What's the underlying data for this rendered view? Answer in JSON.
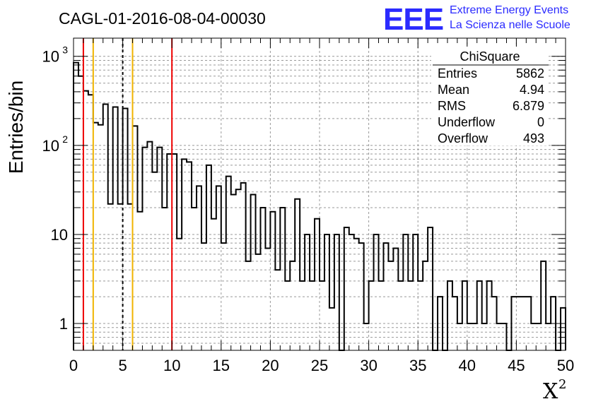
{
  "chart_data": {
    "type": "histogram",
    "title": "CAGL-01-2016-08-04-00030",
    "xlabel": "X",
    "xlabel_superscript": "2",
    "ylabel": "Entries/bin",
    "xlim": [
      0,
      50
    ],
    "ylim": [
      0.5,
      1600
    ],
    "y_scale": "log",
    "grid": true,
    "bin_width": 0.5,
    "x_ticks": [
      "0",
      "5",
      "10",
      "15",
      "20",
      "25",
      "30",
      "35",
      "40",
      "45",
      "50"
    ],
    "y_ticks": [
      {
        "value": 1,
        "label": "1"
      },
      {
        "value": 10,
        "label": "10"
      },
      {
        "value": 100,
        "base": "10",
        "exp": "2"
      },
      {
        "value": 1000,
        "base": "10",
        "exp": "3"
      }
    ],
    "bin_values": [
      850,
      600,
      410,
      370,
      180,
      170,
      290,
      22,
      270,
      22,
      260,
      22,
      165,
      18,
      95,
      110,
      50,
      95,
      20,
      80,
      80,
      9,
      70,
      65,
      20,
      35,
      8,
      60,
      15,
      35,
      8,
      45,
      28,
      32,
      38,
      5,
      28,
      6,
      20,
      7,
      18,
      4,
      20,
      3,
      5,
      25,
      3,
      10,
      3,
      15,
      3,
      10,
      1.5,
      10,
      0.4,
      12,
      10,
      9,
      8,
      1,
      3,
      10,
      3,
      8,
      5,
      7,
      3,
      10,
      3,
      10,
      3,
      5,
      12,
      0.4,
      2,
      0.4,
      3,
      2,
      1,
      3,
      1,
      1,
      3,
      1,
      3,
      2,
      1,
      1,
      0.4,
      2,
      2,
      2,
      2,
      1,
      1,
      5,
      1,
      2,
      0.4,
      1.5
    ],
    "vertical_lines": [
      {
        "x": 1,
        "color": "#ee0000",
        "style": "solid"
      },
      {
        "x": 2,
        "color": "#f0b400",
        "style": "solid"
      },
      {
        "x": 5,
        "color": "#000000",
        "style": "dashed"
      },
      {
        "x": 6,
        "color": "#f0b400",
        "style": "solid"
      },
      {
        "x": 10,
        "color": "#ee0000",
        "style": "solid"
      }
    ],
    "stats_box": {
      "title": "ChiSquare",
      "rows": [
        {
          "label": "Entries",
          "value": "5862"
        },
        {
          "label": "Mean",
          "value": "4.94"
        },
        {
          "label": "RMS",
          "value": "6.879"
        },
        {
          "label": "Underflow",
          "value": "0"
        },
        {
          "label": "Overflow",
          "value": "493"
        }
      ]
    }
  },
  "logo": {
    "mark": "EEE",
    "line1": "Extreme Energy Events",
    "line2": "La Scienza nelle Scuole",
    "color": "#2b2bff"
  }
}
